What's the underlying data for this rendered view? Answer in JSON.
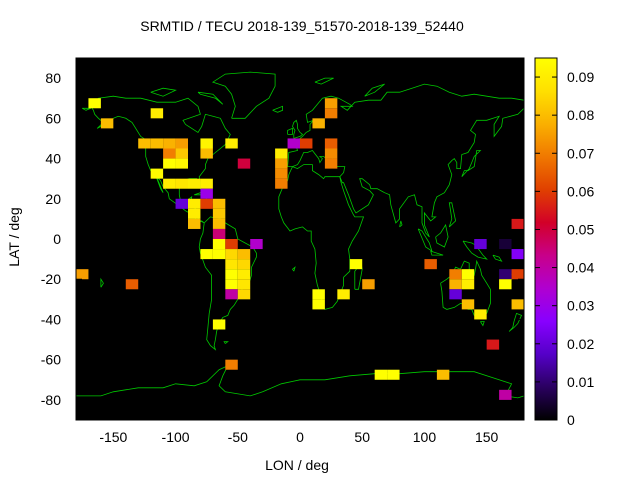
{
  "chart_data": {
    "type": "heatmap",
    "title": "SRMTID / TECU 2018-139_51570-2018-139_52440",
    "xlabel": "LON / deg",
    "ylabel": "LAT / deg",
    "xlim": [
      -180,
      180
    ],
    "ylim": [
      -90,
      90
    ],
    "xticks": [
      -150,
      -100,
      -50,
      0,
      50,
      100,
      150
    ],
    "yticks": [
      -80,
      -60,
      -40,
      -20,
      0,
      20,
      40,
      60,
      80
    ],
    "cell_size_deg": [
      10,
      5
    ],
    "colorbar": {
      "min": 0,
      "max": 0.095,
      "ticks": [
        0,
        0.01,
        0.02,
        0.03,
        0.04,
        0.05,
        0.06,
        0.07,
        0.08,
        0.09
      ],
      "palette": [
        "#000000",
        "#2a0060",
        "#5500c8",
        "#8800ff",
        "#b000d0",
        "#c8008a",
        "#d20028",
        "#e04000",
        "#f07800",
        "#fab000",
        "#ffe000",
        "#ffff00"
      ]
    },
    "background": "#000000",
    "coast_color": "#00c800",
    "cells": [
      {
        "lon": -165,
        "lat": 67.5,
        "value": 0.095
      },
      {
        "lon": -155,
        "lat": 57.5,
        "value": 0.08
      },
      {
        "lon": -115,
        "lat": 62.5,
        "value": 0.09
      },
      {
        "lon": -125,
        "lat": 47.5,
        "value": 0.08
      },
      {
        "lon": -115,
        "lat": 47.5,
        "value": 0.08
      },
      {
        "lon": -105,
        "lat": 47.5,
        "value": 0.078
      },
      {
        "lon": -95,
        "lat": 47.5,
        "value": 0.075
      },
      {
        "lon": -75,
        "lat": 47.5,
        "value": 0.092
      },
      {
        "lon": -55,
        "lat": 47.5,
        "value": 0.09
      },
      {
        "lon": -105,
        "lat": 42.5,
        "value": 0.07
      },
      {
        "lon": -95,
        "lat": 42.5,
        "value": 0.082
      },
      {
        "lon": -75,
        "lat": 42.5,
        "value": 0.08
      },
      {
        "lon": -105,
        "lat": 37.5,
        "value": 0.095
      },
      {
        "lon": -95,
        "lat": 37.5,
        "value": 0.093
      },
      {
        "lon": -115,
        "lat": 32.5,
        "value": 0.094
      },
      {
        "lon": -105,
        "lat": 27.5,
        "value": 0.09
      },
      {
        "lon": -95,
        "lat": 27.5,
        "value": 0.088
      },
      {
        "lon": -85,
        "lat": 27.5,
        "value": 0.09
      },
      {
        "lon": -75,
        "lat": 27.5,
        "value": 0.09
      },
      {
        "lon": -75,
        "lat": 22.5,
        "value": 0.03
      },
      {
        "lon": -95,
        "lat": 17.5,
        "value": 0.02
      },
      {
        "lon": -85,
        "lat": 17.5,
        "value": 0.09
      },
      {
        "lon": -75,
        "lat": 17.5,
        "value": 0.06
      },
      {
        "lon": -65,
        "lat": 17.5,
        "value": 0.08
      },
      {
        "lon": -85,
        "lat": 12.5,
        "value": 0.09
      },
      {
        "lon": -65,
        "lat": 12.5,
        "value": 0.082
      },
      {
        "lon": -85,
        "lat": 7.5,
        "value": 0.08
      },
      {
        "lon": -65,
        "lat": 7.5,
        "value": 0.08
      },
      {
        "lon": -65,
        "lat": 2.5,
        "value": 0.045
      },
      {
        "lon": -65,
        "lat": -2.5,
        "value": 0.095
      },
      {
        "lon": -55,
        "lat": -2.5,
        "value": 0.06
      },
      {
        "lon": -35,
        "lat": -2.5,
        "value": 0.035
      },
      {
        "lon": -75,
        "lat": -7.5,
        "value": 0.095
      },
      {
        "lon": -65,
        "lat": -7.5,
        "value": 0.095
      },
      {
        "lon": -55,
        "lat": -7.5,
        "value": 0.085
      },
      {
        "lon": -45,
        "lat": -7.5,
        "value": 0.08
      },
      {
        "lon": -55,
        "lat": -12.5,
        "value": 0.088
      },
      {
        "lon": -45,
        "lat": -12.5,
        "value": 0.085
      },
      {
        "lon": -55,
        "lat": -17.5,
        "value": 0.095
      },
      {
        "lon": -45,
        "lat": -17.5,
        "value": 0.09
      },
      {
        "lon": -55,
        "lat": -22.5,
        "value": 0.095
      },
      {
        "lon": -45,
        "lat": -22.5,
        "value": 0.088
      },
      {
        "lon": -55,
        "lat": -27.5,
        "value": 0.04
      },
      {
        "lon": -45,
        "lat": -27.5,
        "value": 0.085
      },
      {
        "lon": -65,
        "lat": -42.5,
        "value": 0.095
      },
      {
        "lon": -55,
        "lat": -62.5,
        "value": 0.07
      },
      {
        "lon": -175,
        "lat": -17.5,
        "value": 0.075
      },
      {
        "lon": -135,
        "lat": -22.5,
        "value": 0.065
      },
      {
        "lon": -15,
        "lat": 37.5,
        "value": 0.075
      },
      {
        "lon": -15,
        "lat": 42.5,
        "value": 0.09
      },
      {
        "lon": -45,
        "lat": 37.5,
        "value": 0.05
      },
      {
        "lon": -5,
        "lat": 47.5,
        "value": 0.035
      },
      {
        "lon": 5,
        "lat": 47.5,
        "value": 0.06
      },
      {
        "lon": 25,
        "lat": 67.5,
        "value": 0.075
      },
      {
        "lon": 25,
        "lat": 62.5,
        "value": 0.07
      },
      {
        "lon": 15,
        "lat": 57.5,
        "value": 0.078
      },
      {
        "lon": 25,
        "lat": 47.5,
        "value": 0.065
      },
      {
        "lon": 25,
        "lat": 37.5,
        "value": 0.07
      },
      {
        "lon": 25,
        "lat": 42.5,
        "value": 0.072
      },
      {
        "lon": -15,
        "lat": 27.5,
        "value": 0.07
      },
      {
        "lon": -15,
        "lat": 32.5,
        "value": 0.072
      },
      {
        "lon": 15,
        "lat": -27.5,
        "value": 0.095
      },
      {
        "lon": 15,
        "lat": -32.5,
        "value": 0.095
      },
      {
        "lon": 35,
        "lat": -27.5,
        "value": 0.09
      },
      {
        "lon": 45,
        "lat": -12.5,
        "value": 0.095
      },
      {
        "lon": 55,
        "lat": -22.5,
        "value": 0.075
      },
      {
        "lon": 105,
        "lat": -12.5,
        "value": 0.065
      },
      {
        "lon": 115,
        "lat": -67.5,
        "value": 0.08
      },
      {
        "lon": 65,
        "lat": -67.5,
        "value": 0.095
      },
      {
        "lon": 75,
        "lat": -67.5,
        "value": 0.095
      },
      {
        "lon": 125,
        "lat": -17.5,
        "value": 0.07
      },
      {
        "lon": 135,
        "lat": -17.5,
        "value": 0.095
      },
      {
        "lon": 125,
        "lat": -22.5,
        "value": 0.078
      },
      {
        "lon": 135,
        "lat": -22.5,
        "value": 0.09
      },
      {
        "lon": 125,
        "lat": -27.5,
        "value": 0.02
      },
      {
        "lon": 135,
        "lat": -32.5,
        "value": 0.08
      },
      {
        "lon": 145,
        "lat": -37.5,
        "value": 0.09
      },
      {
        "lon": 155,
        "lat": -52.5,
        "value": 0.055
      },
      {
        "lon": 145,
        "lat": -2.5,
        "value": 0.02
      },
      {
        "lon": 165,
        "lat": -2.5,
        "value": 0.005
      },
      {
        "lon": 175,
        "lat": 7.5,
        "value": 0.055
      },
      {
        "lon": 175,
        "lat": -7.5,
        "value": 0.025
      },
      {
        "lon": 165,
        "lat": -17.5,
        "value": 0.01
      },
      {
        "lon": 175,
        "lat": -17.5,
        "value": 0.06
      },
      {
        "lon": 165,
        "lat": -22.5,
        "value": 0.095
      },
      {
        "lon": 175,
        "lat": -32.5,
        "value": 0.08
      },
      {
        "lon": 165,
        "lat": -77.5,
        "value": 0.04
      }
    ]
  }
}
